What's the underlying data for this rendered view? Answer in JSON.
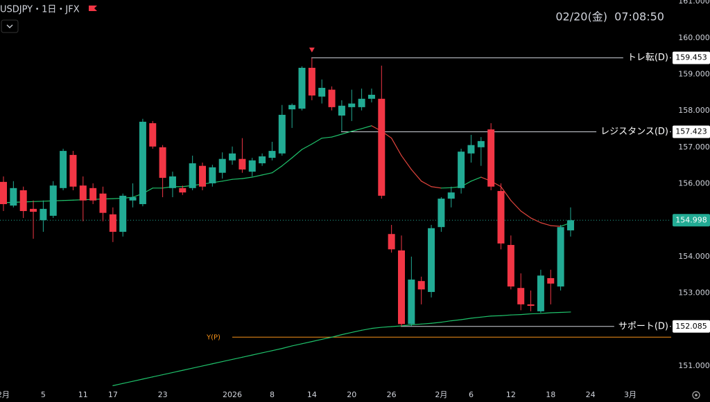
{
  "chart_data": {
    "type": "candlestick",
    "title": "USDJPY・1日・JFX",
    "timestamp": "02/20(金)  07:08:50",
    "up_color": "#22ab94",
    "down_color": "#f23645",
    "open": [
      156.05,
      155.4,
      155.82,
      155.31,
      155.0,
      155.12,
      155.88,
      156.79,
      155.95,
      155.88,
      155.73,
      155.16,
      154.68,
      155.54,
      155.44,
      157.66,
      157.0,
      155.88,
      155.88,
      155.88,
      156.49,
      156.01,
      156.3,
      156.64,
      156.68,
      156.33,
      156.56,
      156.71,
      156.83,
      158.04,
      158.06,
      159.18,
      158.39,
      158.58,
      157.87,
      158.1,
      158.1,
      158.33,
      158.33,
      154.62,
      154.17,
      152.15,
      153.33,
      153.03,
      154.81,
      155.59,
      155.88,
      156.83,
      157.0,
      157.49,
      155.8,
      154.32,
      153.14,
      152.69,
      152.5,
      153.41,
      153.18,
      154.72
    ],
    "high": [
      156.2,
      156.07,
      155.92,
      155.54,
      155.54,
      156.07,
      156.96,
      156.9,
      156.2,
      156.01,
      155.92,
      155.35,
      155.73,
      156.01,
      157.78,
      157.72,
      157.06,
      156.33,
      155.95,
      156.77,
      156.58,
      156.52,
      156.86,
      157.02,
      157.25,
      156.71,
      156.83,
      157.15,
      158.16,
      158.2,
      159.22,
      159.45,
      158.86,
      158.67,
      158.29,
      158.58,
      158.61,
      158.61,
      159.24,
      154.87,
      154.58,
      154.0,
      153.45,
      154.87,
      155.63,
      155.92,
      156.96,
      157.34,
      157.28,
      157.66,
      156.01,
      154.58,
      153.54,
      153.07,
      153.64,
      153.64,
      154.87,
      155.35
    ],
    "low": [
      155.25,
      155.35,
      155.06,
      154.49,
      154.68,
      155.06,
      155.82,
      155.82,
      154.97,
      155.44,
      154.97,
      154.4,
      154.55,
      155.35,
      155.38,
      156.96,
      155.63,
      155.63,
      155.69,
      155.82,
      155.82,
      155.92,
      156.14,
      156.52,
      156.3,
      156.2,
      156.49,
      156.64,
      156.77,
      157.53,
      158.01,
      158.29,
      158.2,
      158.01,
      157.44,
      157.72,
      158.01,
      158.23,
      155.59,
      154.11,
      152.09,
      152.09,
      152.69,
      152.88,
      154.68,
      155.35,
      155.73,
      156.58,
      156.49,
      155.82,
      154.2,
      153.1,
      152.53,
      152.5,
      152.46,
      152.69,
      153.07,
      154.55
    ],
    "close": [
      155.44,
      155.88,
      155.25,
      155.23,
      155.31,
      155.95,
      156.9,
      155.92,
      155.54,
      155.54,
      155.2,
      154.68,
      155.67,
      155.63,
      157.7,
      157.02,
      156.16,
      156.2,
      155.76,
      156.56,
      155.92,
      156.45,
      156.68,
      156.83,
      156.39,
      156.64,
      156.75,
      156.9,
      157.89,
      158.16,
      159.18,
      158.42,
      158.63,
      158.1,
      158.14,
      158.2,
      158.33,
      158.44,
      155.67,
      154.2,
      152.15,
      153.37,
      153.1,
      154.78,
      155.59,
      155.76,
      156.88,
      157.06,
      157.17,
      155.92,
      154.36,
      153.18,
      152.69,
      152.65,
      153.48,
      153.26,
      154.81,
      154.998
    ],
    "moving_averages": [
      {
        "color": "#1fc26b",
        "down_color": "#e0443c",
        "values": [
          155.48,
          155.49,
          155.5,
          155.51,
          155.52,
          155.53,
          155.54,
          155.55,
          155.56,
          155.57,
          155.58,
          155.59,
          155.6,
          155.63,
          155.73,
          155.88,
          155.88,
          155.92,
          155.92,
          155.95,
          155.99,
          156.03,
          156.07,
          156.12,
          156.14,
          156.18,
          156.24,
          156.3,
          156.49,
          156.71,
          156.94,
          157.09,
          157.25,
          157.28,
          157.36,
          157.44,
          157.51,
          157.59,
          157.44,
          157.25,
          156.77,
          156.39,
          156.07,
          155.92,
          155.88,
          155.89,
          155.92,
          156.07,
          156.18,
          156.07,
          155.92,
          155.54,
          155.25,
          155.06,
          154.93,
          154.85,
          154.83,
          154.93
        ]
      },
      {
        "color": "#1fc26b",
        "down_color": "#e0443c",
        "values": [
          null,
          null,
          null,
          null,
          null,
          null,
          null,
          null,
          null,
          null,
          null,
          150.46,
          150.52,
          150.58,
          150.64,
          150.7,
          150.76,
          150.82,
          150.88,
          150.94,
          151.0,
          151.06,
          151.12,
          151.18,
          151.24,
          151.3,
          151.36,
          151.42,
          151.48,
          151.55,
          151.61,
          151.67,
          151.73,
          151.79,
          151.86,
          151.92,
          151.98,
          152.03,
          152.06,
          152.08,
          152.1,
          152.13,
          152.15,
          152.17,
          152.2,
          152.24,
          152.27,
          152.31,
          152.34,
          152.37,
          152.38,
          152.4,
          152.41,
          152.43,
          152.44,
          152.46,
          152.47,
          152.48
        ]
      }
    ],
    "levels": [
      {
        "name": "トレ転(D)",
        "value": 159.453
      },
      {
        "name": "レジスタンス(D)",
        "value": 157.423
      },
      {
        "name": "サポート(D)",
        "value": 152.085
      }
    ],
    "pivot": {
      "name": "Y(P)",
      "value": 151.79,
      "color": "#f7931a"
    },
    "last_price": 154.998,
    "ylim": [
      150.41,
      161.04
    ],
    "yticks": [
      {
        "value": 161,
        "label": "161.000"
      },
      {
        "value": 160,
        "label": "160.000"
      },
      {
        "value": 159,
        "label": "159.000"
      },
      {
        "value": 158,
        "label": "158.000"
      },
      {
        "value": 157,
        "label": "157.000"
      },
      {
        "value": 156,
        "label": "156.000"
      },
      {
        "value": 155,
        "label": "155.000"
      },
      {
        "value": 154,
        "label": "154.000"
      },
      {
        "value": 153,
        "label": "153.000"
      },
      {
        "value": 152,
        "label": "152.000"
      },
      {
        "value": 151,
        "label": "151.000"
      }
    ],
    "xticks": [
      {
        "value": 0,
        "label": "2月"
      },
      {
        "value": 4,
        "label": "5"
      },
      {
        "value": 8,
        "label": "11"
      },
      {
        "value": 11,
        "label": "17"
      },
      {
        "value": 16,
        "label": "23"
      },
      {
        "value": 23,
        "label": "2026"
      },
      {
        "value": 27,
        "label": "8"
      },
      {
        "value": 31,
        "label": "14"
      },
      {
        "value": 35,
        "label": "20"
      },
      {
        "value": 39,
        "label": "26"
      },
      {
        "value": 44,
        "label": "2月"
      },
      {
        "value": 47,
        "label": "6"
      },
      {
        "value": 51,
        "label": "12"
      },
      {
        "value": 55,
        "label": "18"
      },
      {
        "value": 59,
        "label": "24"
      },
      {
        "value": 63,
        "label": "3月"
      }
    ]
  }
}
